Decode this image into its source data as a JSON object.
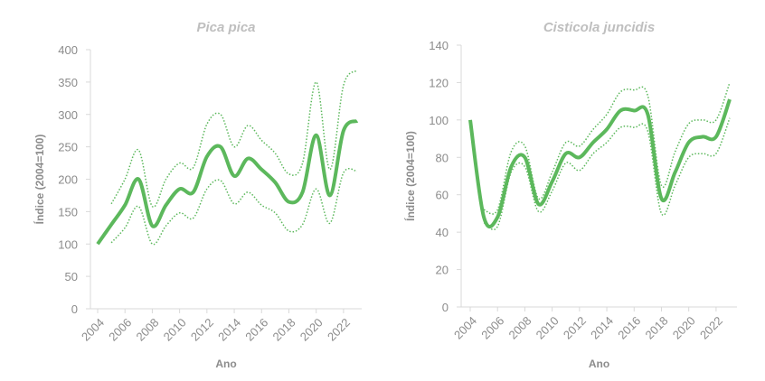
{
  "chart_data": [
    {
      "type": "line",
      "title": "Pica pica",
      "ylabel": "Índice (2004=100)",
      "xlabel": "Ano",
      "x": [
        2004,
        2005,
        2006,
        2007,
        2008,
        2009,
        2010,
        2011,
        2012,
        2013,
        2014,
        2015,
        2016,
        2017,
        2018,
        2019,
        2020,
        2021,
        2022,
        2023
      ],
      "xlim": [
        2004,
        2023
      ],
      "xticks": [
        2004,
        2006,
        2008,
        2010,
        2012,
        2014,
        2016,
        2018,
        2020,
        2022
      ],
      "ylim": [
        0,
        400
      ],
      "yticks": [
        0,
        50,
        100,
        150,
        200,
        250,
        300,
        350,
        400
      ],
      "series": [
        {
          "color": "#5cb85c",
          "style": "solid",
          "values": [
            100,
            130,
            160,
            200,
            128,
            160,
            185,
            180,
            235,
            250,
            205,
            232,
            215,
            195,
            165,
            180,
            268,
            175,
            275,
            290
          ]
        },
        {
          "color": "#5cb85c",
          "style": "dotted",
          "values": [
            null,
            162,
            200,
            245,
            158,
            200,
            225,
            218,
            285,
            300,
            250,
            283,
            260,
            240,
            208,
            225,
            350,
            215,
            345,
            368
          ]
        },
        {
          "color": "#5cb85c",
          "style": "dotted",
          "values": [
            null,
            102,
            125,
            158,
            100,
            128,
            148,
            140,
            185,
            198,
            162,
            180,
            160,
            148,
            120,
            130,
            185,
            132,
            210,
            212
          ]
        }
      ]
    },
    {
      "type": "line",
      "title": "Cisticola juncidis",
      "ylabel": "Índice (2004=100)",
      "xlabel": "Ano",
      "x": [
        2004,
        2005,
        2006,
        2007,
        2008,
        2009,
        2010,
        2011,
        2012,
        2013,
        2014,
        2015,
        2016,
        2017,
        2018,
        2019,
        2020,
        2021,
        2022,
        2023
      ],
      "xlim": [
        2004,
        2023
      ],
      "xticks": [
        2004,
        2006,
        2008,
        2010,
        2012,
        2014,
        2016,
        2018,
        2020,
        2022
      ],
      "ylim": [
        0,
        140
      ],
      "yticks": [
        0,
        20,
        40,
        60,
        80,
        100,
        120,
        140
      ],
      "series": [
        {
          "color": "#5cb85c",
          "style": "solid",
          "values": [
            100,
            48,
            48,
            75,
            80,
            55,
            67,
            82,
            80,
            88,
            95,
            105,
            105,
            103,
            58,
            72,
            88,
            91,
            91,
            111
          ]
        },
        {
          "color": "#5cb85c",
          "style": "dotted",
          "values": [
            null,
            52,
            52,
            83,
            86,
            58,
            72,
            88,
            86,
            95,
            103,
            115,
            116,
            113,
            65,
            83,
            98,
            100,
            100,
            120
          ]
        },
        {
          "color": "#5cb85c",
          "style": "dotted",
          "values": [
            null,
            45,
            43,
            72,
            75,
            51,
            62,
            77,
            73,
            82,
            88,
            96,
            96,
            94,
            50,
            65,
            80,
            82,
            82,
            101
          ]
        }
      ]
    }
  ]
}
